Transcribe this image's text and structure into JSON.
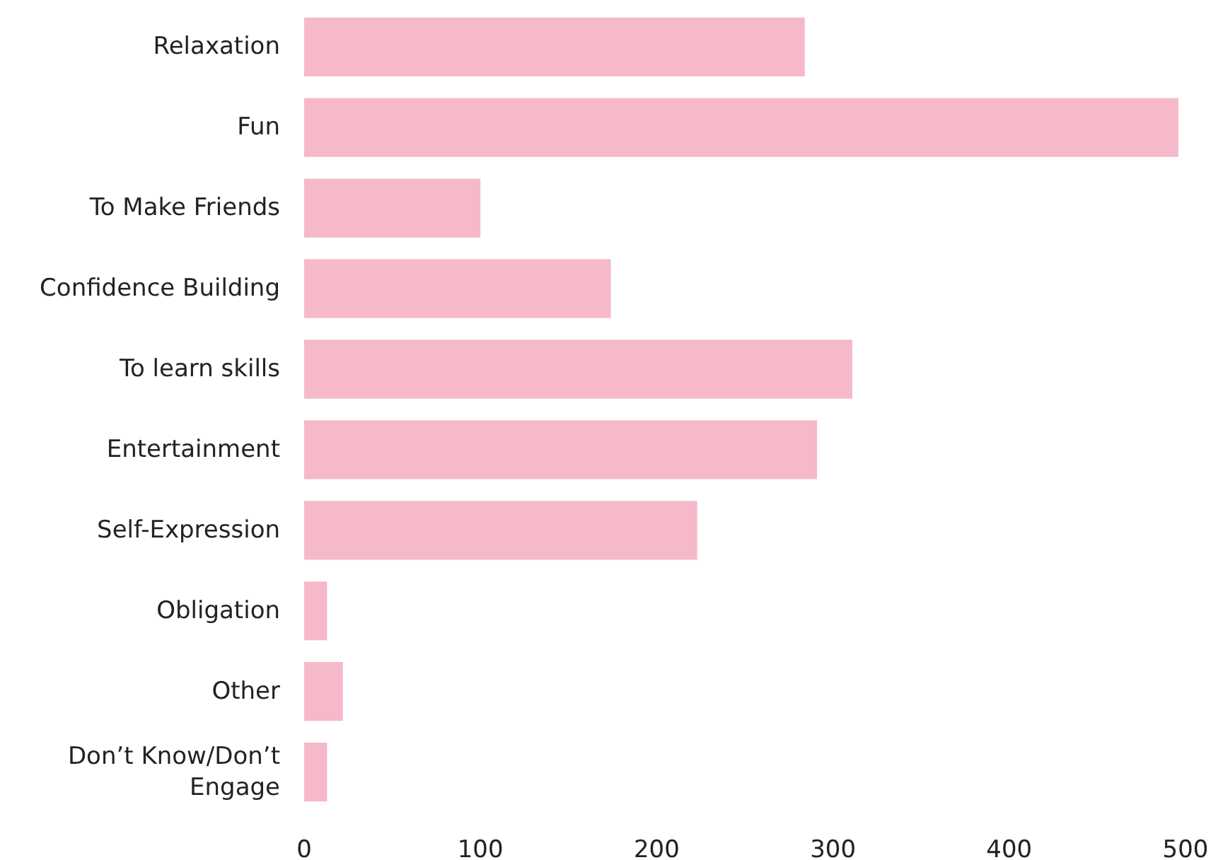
{
  "chart_data": {
    "type": "bar",
    "orientation": "horizontal",
    "categories": [
      "Relaxation",
      "Fun",
      "To Make Friends",
      "Confidence Building",
      "To learn skills",
      "Entertainment",
      "Self-Expression",
      "Obligation",
      "Other",
      "Don’t Know/Don’t Engage"
    ],
    "values": [
      284,
      496,
      100,
      174,
      311,
      291,
      223,
      13,
      22,
      13
    ],
    "color": "#f5b9c9",
    "xlim": [
      0,
      500
    ],
    "xticks": [
      0,
      100,
      200,
      300,
      400,
      500
    ],
    "grid": false
  }
}
